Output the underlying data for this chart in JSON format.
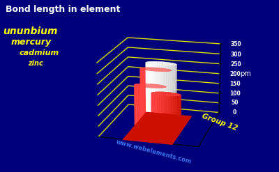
{
  "title": "Bond length in element",
  "ylabel": "pm",
  "group_label": "Group 12",
  "website": "www.webelements.com",
  "elements": [
    "zinc",
    "cadmium",
    "mercury",
    "ununbium"
  ],
  "values": [
    249,
    298,
    300,
    121
  ],
  "bar_colors": [
    "#cc1100",
    "#cc1100",
    "#c8c8c8",
    "#cc1100"
  ],
  "bar_colors_light": [
    "#ff4444",
    "#ff4444",
    "#ffffff",
    "#ff4444"
  ],
  "background_color": "#00007a",
  "grid_color": "#dddd00",
  "title_color": "#ffffff",
  "label_color": "#ffff00",
  "group12_color": "#ffff00",
  "website_color": "#4488ff",
  "ylim": [
    0,
    350
  ],
  "yticks": [
    0,
    50,
    100,
    150,
    200,
    250,
    300,
    350
  ],
  "elev": 18,
  "azim": -75,
  "figsize": [
    4.0,
    2.47
  ],
  "dpi": 100
}
